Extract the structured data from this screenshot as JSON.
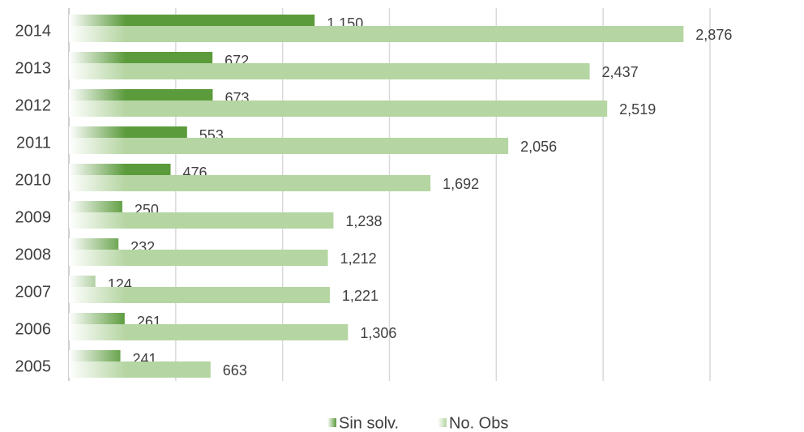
{
  "chart_data": {
    "type": "bar",
    "orientation": "horizontal",
    "categories": [
      "2014",
      "2013",
      "2012",
      "2011",
      "2010",
      "2009",
      "2008",
      "2007",
      "2006",
      "2005"
    ],
    "series": [
      {
        "name": "Sin solv.",
        "color": "#5b9b3c",
        "values": [
          1150,
          672,
          673,
          553,
          476,
          250,
          232,
          124,
          261,
          241
        ],
        "value_labels": [
          "1,150",
          "672",
          "673",
          "553",
          "476",
          "250",
          "232",
          "124",
          "261",
          "241"
        ]
      },
      {
        "name": "No. Obs",
        "color": "#b5d5a2",
        "values": [
          2876,
          2437,
          2519,
          2056,
          1692,
          1238,
          1212,
          1221,
          1306,
          663
        ],
        "value_labels": [
          "2,876",
          "2,437",
          "2,519",
          "2,056",
          "1,692",
          "1,238",
          "1,212",
          "1,221",
          "1,306",
          "663"
        ]
      }
    ],
    "xlim": [
      0,
      3000
    ],
    "xticks": [
      0,
      500,
      1000,
      1500,
      2000,
      2500,
      3000
    ],
    "grid": true,
    "legend": "bottom"
  }
}
